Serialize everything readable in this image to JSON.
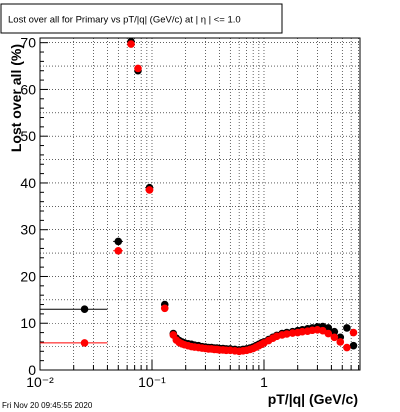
{
  "title_box": {
    "text": "Lost over all for Primary vs pT/|q| (GeV/c) at |  η | <= 1.0"
  },
  "footer": {
    "timestamp": "Fri Nov 20 09:45:55 2020"
  },
  "colors": {
    "series_black": "#000000",
    "series_red": "#ff0000",
    "grid": "#000000",
    "frame": "#000000"
  },
  "chart_data": {
    "type": "scatter",
    "title": "Lost over all for Primary vs pT/|q| (GeV/c) at |  η | <= 1.0",
    "xlabel": "pT/|q| (GeV/c)",
    "ylabel": "Lost over all (%)",
    "x_scale": "log",
    "xlim": [
      0.01,
      7.2
    ],
    "ylim": [
      0,
      71
    ],
    "x_ticks": [
      {
        "value": 0.01,
        "label": "10⁻²"
      },
      {
        "value": 0.1,
        "label": "10⁻¹"
      },
      {
        "value": 1,
        "label": "1"
      }
    ],
    "y_ticks": [
      0,
      10,
      20,
      30,
      40,
      50,
      60,
      70
    ],
    "grid": true,
    "series": [
      {
        "color": "black",
        "points": [
          {
            "x": 0.025,
            "y": 13.0,
            "xerr": [
              0.01,
              0.04
            ]
          },
          {
            "x": 0.05,
            "y": 27.5,
            "xerr": [
              0.045,
              0.055
            ]
          },
          {
            "x": 0.065,
            "y": 70.2,
            "xerr": [
              0.061,
              0.069
            ]
          },
          {
            "x": 0.075,
            "y": 64.0,
            "xerr": [
              0.071,
              0.079
            ]
          },
          {
            "x": 0.095,
            "y": 39.0,
            "xerr": [
              0.087,
              0.103
            ]
          },
          {
            "x": 0.13,
            "y": 14.0,
            "xerr": [
              0.123,
              0.137
            ]
          },
          {
            "x": 0.155,
            "y": 7.8
          },
          {
            "x": 0.165,
            "y": 6.8
          },
          {
            "x": 0.175,
            "y": 6.3
          },
          {
            "x": 0.185,
            "y": 6.0
          },
          {
            "x": 0.195,
            "y": 5.8
          },
          {
            "x": 0.21,
            "y": 5.6
          },
          {
            "x": 0.225,
            "y": 5.5
          },
          {
            "x": 0.24,
            "y": 5.3
          },
          {
            "x": 0.26,
            "y": 5.2
          },
          {
            "x": 0.28,
            "y": 5.0
          },
          {
            "x": 0.3,
            "y": 4.9
          },
          {
            "x": 0.32,
            "y": 4.8
          },
          {
            "x": 0.34,
            "y": 4.8
          },
          {
            "x": 0.36,
            "y": 4.7
          },
          {
            "x": 0.38,
            "y": 4.7
          },
          {
            "x": 0.4,
            "y": 4.6
          },
          {
            "x": 0.43,
            "y": 4.6
          },
          {
            "x": 0.46,
            "y": 4.5
          },
          {
            "x": 0.5,
            "y": 4.5
          },
          {
            "x": 0.55,
            "y": 4.4
          },
          {
            "x": 0.6,
            "y": 4.3
          },
          {
            "x": 0.65,
            "y": 4.4
          },
          {
            "x": 0.7,
            "y": 4.5
          },
          {
            "x": 0.75,
            "y": 4.7
          },
          {
            "x": 0.8,
            "y": 4.9
          },
          {
            "x": 0.85,
            "y": 5.2
          },
          {
            "x": 0.9,
            "y": 5.5
          },
          {
            "x": 0.95,
            "y": 5.8
          },
          {
            "x": 1.0,
            "y": 6.0
          },
          {
            "x": 1.1,
            "y": 6.5
          },
          {
            "x": 1.2,
            "y": 7.0
          },
          {
            "x": 1.3,
            "y": 7.4
          },
          {
            "x": 1.45,
            "y": 7.8
          },
          {
            "x": 1.6,
            "y": 8.0
          },
          {
            "x": 1.8,
            "y": 8.2
          },
          {
            "x": 2.0,
            "y": 8.4
          },
          {
            "x": 2.2,
            "y": 8.6
          },
          {
            "x": 2.45,
            "y": 8.8
          },
          {
            "x": 2.7,
            "y": 9.0
          },
          {
            "x": 3.0,
            "y": 9.2
          },
          {
            "x": 3.35,
            "y": 9.3
          },
          {
            "x": 3.75,
            "y": 9.0
          },
          {
            "x": 4.25,
            "y": 8.2
          },
          {
            "x": 4.8,
            "y": 7.0
          },
          {
            "x": 5.5,
            "y": 9.0
          },
          {
            "x": 6.3,
            "y": 5.2
          }
        ]
      },
      {
        "color": "red",
        "points": [
          {
            "x": 0.025,
            "y": 5.8,
            "xerr": [
              0.01,
              0.04
            ]
          },
          {
            "x": 0.05,
            "y": 25.5,
            "xerr": [
              0.045,
              0.055
            ]
          },
          {
            "x": 0.065,
            "y": 69.7,
            "xerr": [
              0.061,
              0.069
            ]
          },
          {
            "x": 0.075,
            "y": 64.5,
            "xerr": [
              0.071,
              0.079
            ]
          },
          {
            "x": 0.095,
            "y": 38.5,
            "xerr": [
              0.087,
              0.103
            ]
          },
          {
            "x": 0.13,
            "y": 13.2,
            "xerr": [
              0.123,
              0.137
            ]
          },
          {
            "x": 0.155,
            "y": 7.5
          },
          {
            "x": 0.165,
            "y": 6.4
          },
          {
            "x": 0.175,
            "y": 5.9
          },
          {
            "x": 0.185,
            "y": 5.6
          },
          {
            "x": 0.195,
            "y": 5.4
          },
          {
            "x": 0.21,
            "y": 5.2
          },
          {
            "x": 0.225,
            "y": 5.0
          },
          {
            "x": 0.24,
            "y": 4.9
          },
          {
            "x": 0.26,
            "y": 4.8
          },
          {
            "x": 0.28,
            "y": 4.7
          },
          {
            "x": 0.3,
            "y": 4.6
          },
          {
            "x": 0.32,
            "y": 4.5
          },
          {
            "x": 0.34,
            "y": 4.5
          },
          {
            "x": 0.36,
            "y": 4.4
          },
          {
            "x": 0.38,
            "y": 4.4
          },
          {
            "x": 0.4,
            "y": 4.3
          },
          {
            "x": 0.43,
            "y": 4.3
          },
          {
            "x": 0.46,
            "y": 4.2
          },
          {
            "x": 0.5,
            "y": 4.2
          },
          {
            "x": 0.55,
            "y": 4.1
          },
          {
            "x": 0.6,
            "y": 4.0
          },
          {
            "x": 0.65,
            "y": 4.1
          },
          {
            "x": 0.7,
            "y": 4.2
          },
          {
            "x": 0.75,
            "y": 4.4
          },
          {
            "x": 0.8,
            "y": 4.6
          },
          {
            "x": 0.85,
            "y": 4.9
          },
          {
            "x": 0.9,
            "y": 5.2
          },
          {
            "x": 0.95,
            "y": 5.5
          },
          {
            "x": 1.0,
            "y": 5.8
          },
          {
            "x": 1.1,
            "y": 6.3
          },
          {
            "x": 1.2,
            "y": 6.8
          },
          {
            "x": 1.3,
            "y": 7.2
          },
          {
            "x": 1.45,
            "y": 7.5
          },
          {
            "x": 1.6,
            "y": 7.7
          },
          {
            "x": 1.8,
            "y": 7.9
          },
          {
            "x": 2.0,
            "y": 8.0
          },
          {
            "x": 2.2,
            "y": 8.2
          },
          {
            "x": 2.45,
            "y": 8.3
          },
          {
            "x": 2.7,
            "y": 8.5
          },
          {
            "x": 3.0,
            "y": 8.6
          },
          {
            "x": 3.35,
            "y": 8.4
          },
          {
            "x": 3.75,
            "y": 7.8
          },
          {
            "x": 4.25,
            "y": 7.0
          },
          {
            "x": 4.8,
            "y": 6.0
          },
          {
            "x": 5.5,
            "y": 4.8
          },
          {
            "x": 6.3,
            "y": 8.0
          }
        ]
      }
    ]
  }
}
